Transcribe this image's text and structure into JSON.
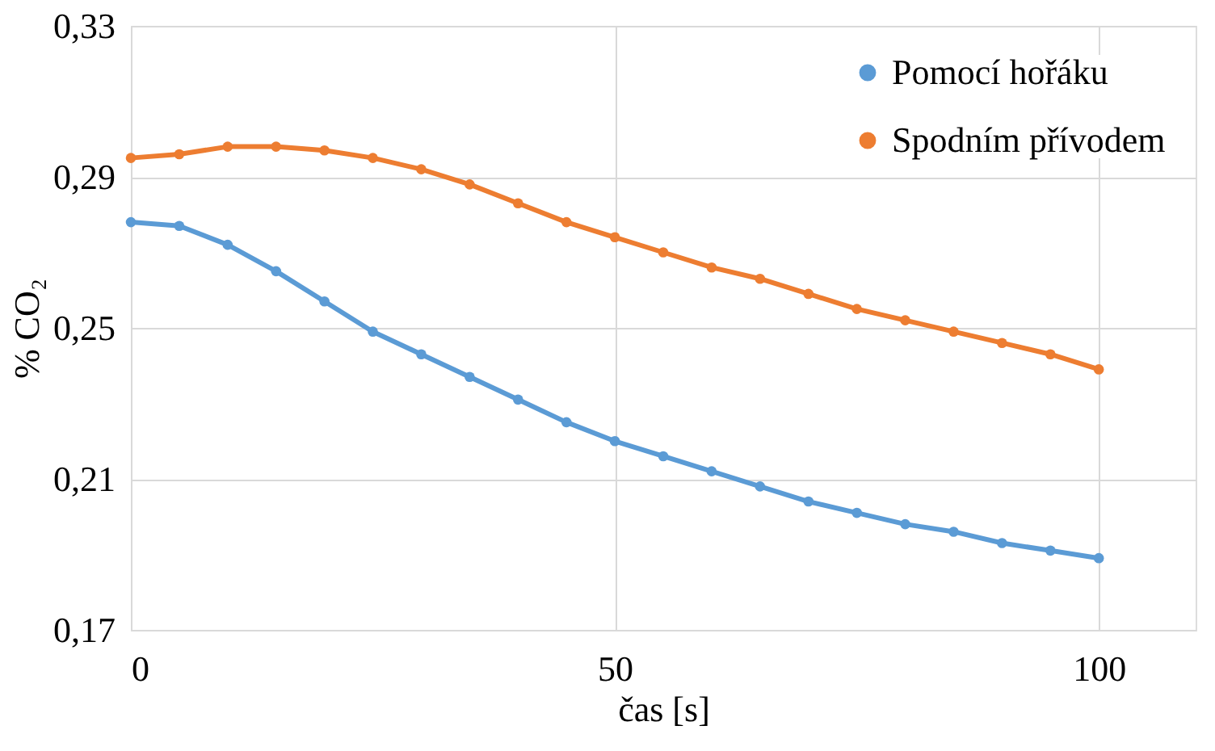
{
  "chart_data": {
    "type": "line",
    "xlabel": "čas [s]",
    "ylabel": "% CO₂",
    "x": [
      0,
      5,
      10,
      15,
      20,
      25,
      30,
      35,
      40,
      45,
      50,
      55,
      60,
      65,
      70,
      75,
      80,
      85,
      90,
      95,
      100
    ],
    "series": [
      {
        "name": "Pomocí hořáku",
        "color": "#5b9bd5",
        "values": [
          0.278,
          0.277,
          0.272,
          0.265,
          0.257,
          0.249,
          0.243,
          0.237,
          0.231,
          0.225,
          0.22,
          0.216,
          0.212,
          0.208,
          0.204,
          0.201,
          0.198,
          0.196,
          0.193,
          0.191,
          0.189
        ]
      },
      {
        "name": "Spodním přívodem",
        "color": "#ed7d31",
        "values": [
          0.295,
          0.296,
          0.298,
          0.298,
          0.297,
          0.295,
          0.292,
          0.288,
          0.283,
          0.278,
          0.274,
          0.27,
          0.266,
          0.263,
          0.259,
          0.255,
          0.252,
          0.249,
          0.246,
          0.243,
          0.239
        ]
      }
    ],
    "xlim": [
      0,
      110
    ],
    "xticks": [
      0,
      50,
      100
    ],
    "ylim": [
      0.17,
      0.33
    ],
    "yticks": [
      {
        "value": 0.17,
        "label": "0,17"
      },
      {
        "value": 0.21,
        "label": "0,21"
      },
      {
        "value": 0.25,
        "label": "0,25"
      },
      {
        "value": 0.29,
        "label": "0,29"
      },
      {
        "value": 0.33,
        "label": "0,33"
      }
    ],
    "grid": true,
    "legend": "top right",
    "marker": "circle",
    "line_style": "solid"
  }
}
